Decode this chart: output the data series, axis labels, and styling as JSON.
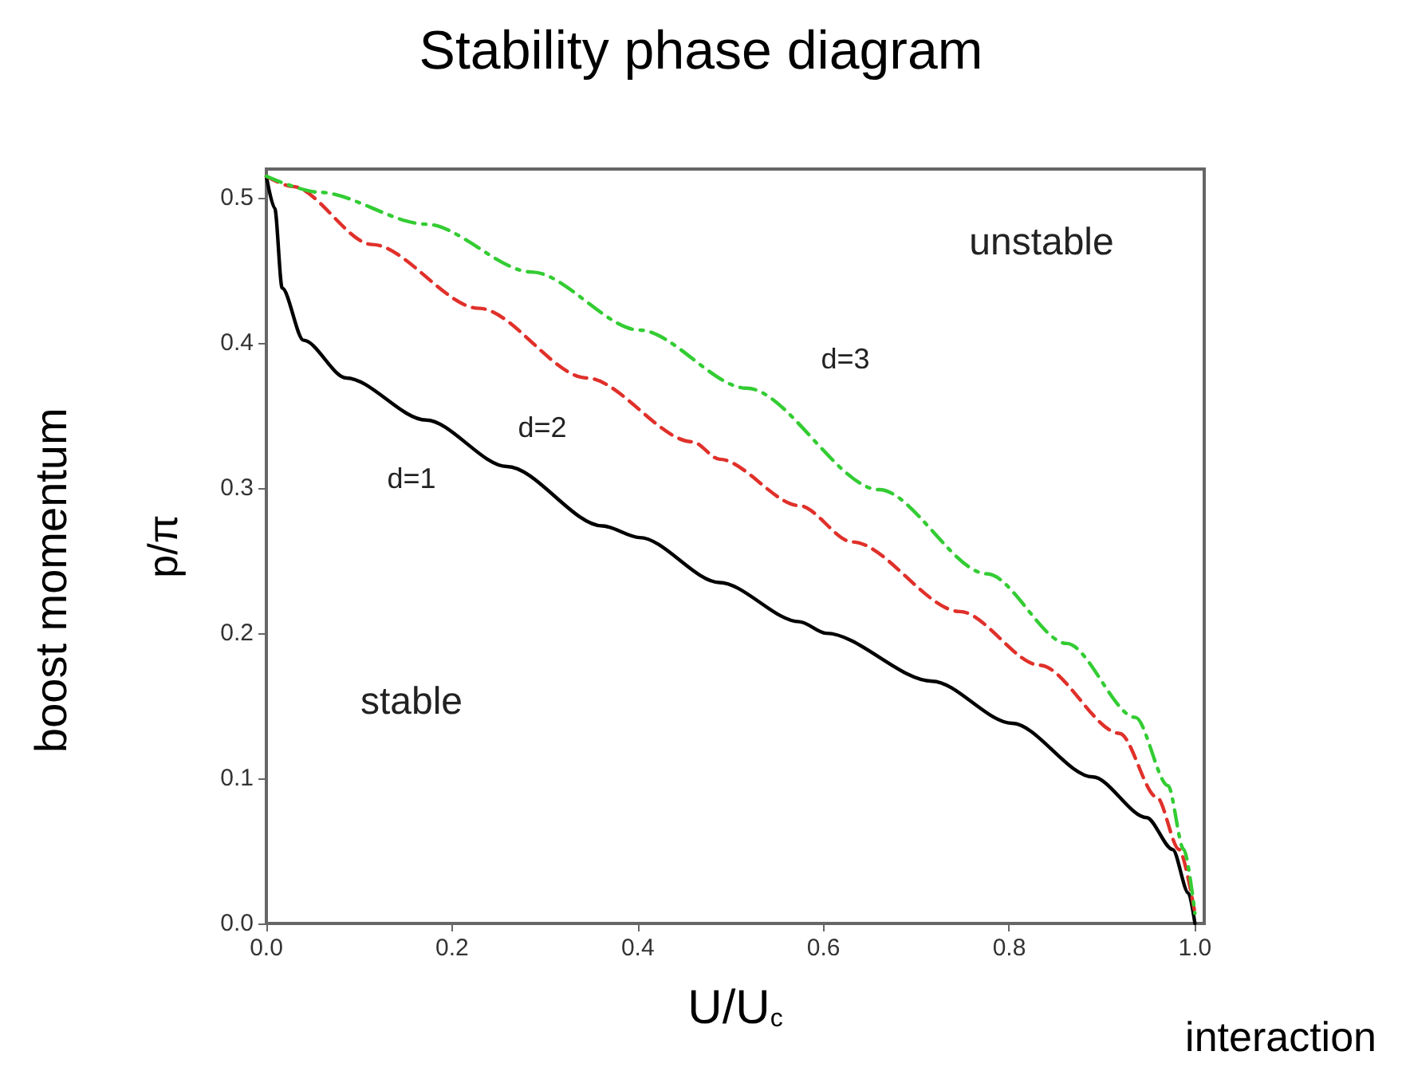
{
  "chart_data": {
    "type": "line",
    "title": "Stability phase diagram",
    "xlabel": "U/U$_{c}$",
    "ylabel": "p/π",
    "xlim": [
      0,
      1.01
    ],
    "ylim": [
      0,
      0.52
    ],
    "xticks": [
      {
        "value": 0,
        "label": "0.0"
      },
      {
        "value": 0.2,
        "label": "0.2"
      },
      {
        "value": 0.4,
        "label": "0.4"
      },
      {
        "value": 0.6,
        "label": "0.6"
      },
      {
        "value": 0.8,
        "label": "0.8"
      },
      {
        "value": 1,
        "label": "1.0"
      }
    ],
    "yticks": [
      {
        "value": 0,
        "label": "0.0"
      },
      {
        "value": 0.1,
        "label": "0.1"
      },
      {
        "value": 0.2,
        "label": "0.2"
      },
      {
        "value": 0.3,
        "label": "0.3"
      },
      {
        "value": 0.4,
        "label": "0.4"
      },
      {
        "value": 0.5,
        "label": "0.5"
      }
    ],
    "grid": false,
    "marker": "none",
    "series": [
      {
        "color": "#000000",
        "line_style": "solid",
        "x": [
          0,
          0.009,
          0.017,
          0.04,
          0.086,
          0.172,
          0.259,
          0.362,
          0.402,
          0.488,
          0.574,
          0.603,
          0.717,
          0.803,
          0.89,
          0.948,
          0.976,
          0.993,
          1.0
        ],
        "values": [
          0.515,
          0.493,
          0.438,
          0.402,
          0.376,
          0.347,
          0.315,
          0.274,
          0.266,
          0.235,
          0.208,
          0.2,
          0.167,
          0.138,
          0.101,
          0.073,
          0.051,
          0.021,
          0
        ]
      },
      {
        "color": "#e0302a",
        "line_style": "dashed",
        "x": [
          0,
          0.028,
          0.114,
          0.229,
          0.345,
          0.459,
          0.488,
          0.574,
          0.631,
          0.747,
          0.833,
          0.919,
          0.959,
          0.983,
          1.0
        ],
        "values": [
          0.515,
          0.508,
          0.468,
          0.424,
          0.376,
          0.332,
          0.32,
          0.288,
          0.263,
          0.215,
          0.178,
          0.131,
          0.087,
          0.051,
          0.007
        ]
      },
      {
        "color": "#33cc33",
        "line_style": "dashdot",
        "x": [
          0,
          0.057,
          0.172,
          0.286,
          0.402,
          0.517,
          0.66,
          0.776,
          0.862,
          0.936,
          0.971,
          0.988,
          1.0
        ],
        "values": [
          0.515,
          0.504,
          0.482,
          0.449,
          0.409,
          0.369,
          0.299,
          0.241,
          0.193,
          0.142,
          0.095,
          0.051,
          0.007
        ]
      }
    ],
    "annotations": [
      "d=1",
      "d=2",
      "d=3",
      "unstable",
      "stable",
      "boost momentum",
      "interaction"
    ]
  }
}
